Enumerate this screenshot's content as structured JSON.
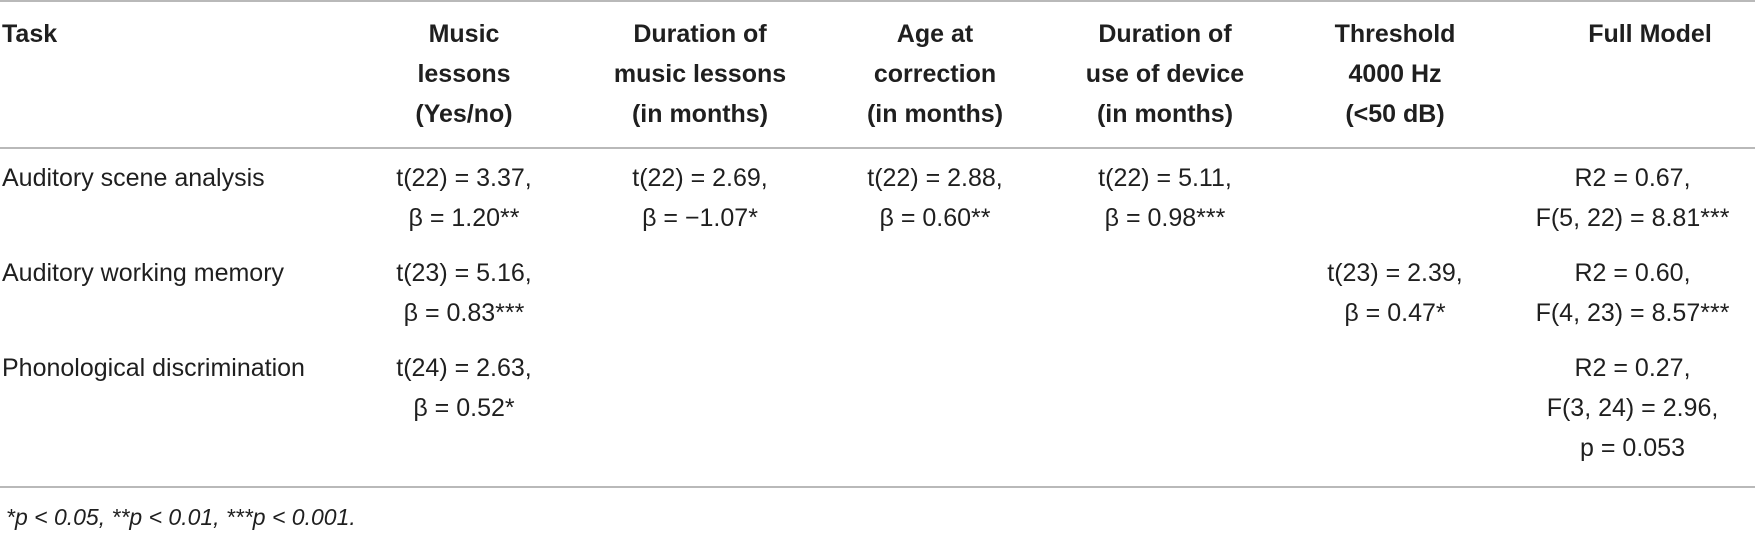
{
  "table": {
    "headers": [
      {
        "key": "task",
        "lines": [
          "Task"
        ]
      },
      {
        "key": "music_lessons",
        "lines": [
          "Music",
          "lessons",
          "(Yes/no)"
        ]
      },
      {
        "key": "duration_lessons",
        "lines": [
          "Duration of",
          "music lessons",
          "(in months)"
        ]
      },
      {
        "key": "age_correction",
        "lines": [
          "Age at",
          "correction",
          "(in months)"
        ]
      },
      {
        "key": "duration_device",
        "lines": [
          "Duration of",
          "use of device",
          "(in months)"
        ]
      },
      {
        "key": "threshold",
        "lines": [
          "Threshold",
          "4000 Hz",
          "(<50 dB)"
        ]
      },
      {
        "key": "full_model",
        "lines": [
          "Full Model"
        ]
      }
    ],
    "rows": [
      {
        "task": "Auditory scene analysis",
        "music_lessons": [
          "t(22) = 3.37,",
          "β = 1.20**"
        ],
        "duration_lessons": [
          "t(22) = 2.69,",
          "β = −1.07*"
        ],
        "age_correction": [
          "t(22) = 2.88,",
          "β = 0.60**"
        ],
        "duration_device": [
          "t(22) = 5.11,",
          "β = 0.98***"
        ],
        "threshold": [],
        "full_model": [
          "R2 = 0.67,",
          "F(5, 22) = 8.81***"
        ]
      },
      {
        "task": "Auditory working memory",
        "music_lessons": [
          "t(23) = 5.16,",
          "β = 0.83***"
        ],
        "duration_lessons": [],
        "age_correction": [],
        "duration_device": [],
        "threshold": [
          "t(23) = 2.39,",
          "β = 0.47*"
        ],
        "full_model": [
          "R2 = 0.60,",
          "F(4, 23) = 8.57***"
        ]
      },
      {
        "task": "Phonological discrimination",
        "music_lessons": [
          "t(24) = 2.63,",
          "β = 0.52*"
        ],
        "duration_lessons": [],
        "age_correction": [],
        "duration_device": [],
        "threshold": [],
        "full_model": [
          "R2 = 0.27,",
          "F(3, 24) = 2.96,",
          "p = 0.053"
        ]
      }
    ],
    "footnote": "*p < 0.05, **p < 0.01, ***p < 0.001."
  }
}
